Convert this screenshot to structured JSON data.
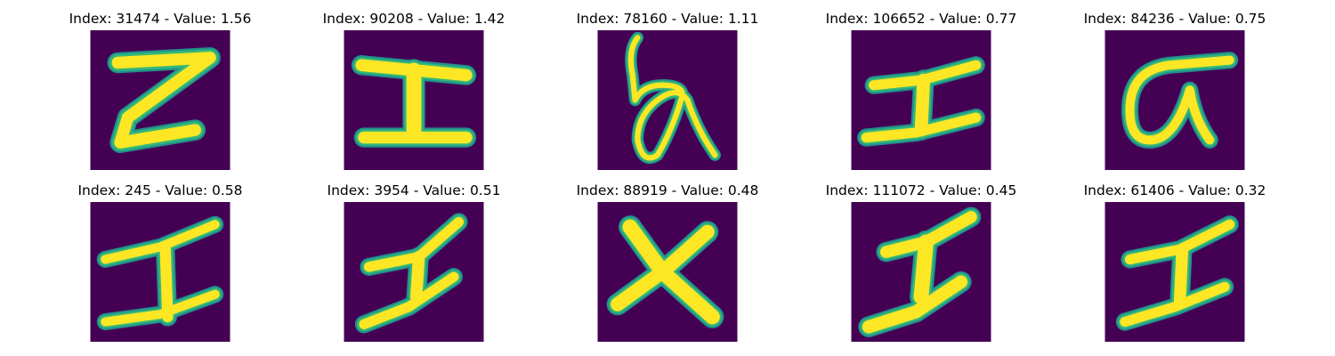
{
  "colors": {
    "background": "#440154",
    "stroke_core": "#fde725",
    "stroke_mid": "#35b779",
    "stroke_edge": "#21918c"
  },
  "panels": [
    {
      "title": "Index: 31474 - Value: 1.56",
      "glyph": "z-shape"
    },
    {
      "title": "Index: 90208 - Value: 1.42",
      "glyph": "i-beam"
    },
    {
      "title": "Index: 78160 - Value: 1.11",
      "glyph": "b-alpha"
    },
    {
      "title": "Index: 106652 - Value: 0.77",
      "glyph": "i-beam-slanted"
    },
    {
      "title": "Index: 84236 - Value: 0.75",
      "glyph": "sigma"
    },
    {
      "title": "Index: 245 - Value: 0.58",
      "glyph": "i-beam-slanted"
    },
    {
      "title": "Index: 3954 - Value: 0.51",
      "glyph": "i-beam-slanted"
    },
    {
      "title": "Index: 88919 - Value: 0.48",
      "glyph": "x-shape"
    },
    {
      "title": "Index: 111072 - Value: 0.45",
      "glyph": "i-beam-slanted"
    },
    {
      "title": "Index: 61406 - Value: 0.32",
      "glyph": "i-beam-slanted"
    }
  ]
}
